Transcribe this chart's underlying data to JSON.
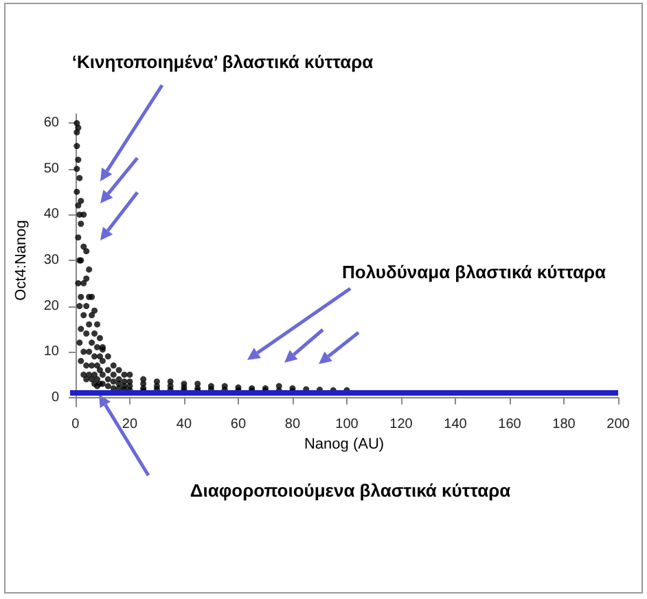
{
  "chart_data": {
    "type": "scatter",
    "xlabel": "Nanog (AU)",
    "ylabel": "Oct4:Nanog",
    "annotations": [
      "‘Κινητοποιημένα’ βλαστικά κύτταρα",
      "Πολυδύναμα βλαστικά κύτταρα",
      "Διαφοροποιούμενα βλαστικά κύτταρα"
    ],
    "xlim": [
      -2,
      200
    ],
    "xticks": [
      0,
      20,
      40,
      60,
      80,
      100,
      120,
      140,
      160,
      180,
      200
    ],
    "ylim": [
      -2,
      62
    ],
    "yticks": [
      0,
      10,
      20,
      30,
      40,
      50,
      60
    ],
    "grid": false,
    "marker": "circle",
    "ref_lines": [
      {
        "axis": "y",
        "value": 1,
        "color": "#2020c8"
      }
    ],
    "series": [
      {
        "color": "#000000",
        "x": [
          0.5,
          0.5,
          0.5,
          0.5,
          0.5,
          1,
          1,
          1,
          1,
          1,
          1.5,
          1.5,
          1.5,
          1.5,
          1.5,
          2,
          2,
          2,
          2,
          2,
          2,
          3,
          3,
          3,
          3,
          3,
          3,
          4,
          4,
          4,
          4,
          4,
          4,
          5,
          5,
          5,
          5,
          5,
          6,
          6,
          6,
          6,
          6,
          7,
          7,
          7,
          7,
          7,
          8,
          8,
          8,
          8,
          8,
          9,
          9,
          9,
          9,
          10,
          10,
          10,
          10,
          10,
          12,
          12,
          12,
          12,
          14,
          14,
          14,
          14,
          16,
          16,
          16,
          16,
          18,
          18,
          18,
          18,
          20,
          20,
          20,
          20,
          25,
          25,
          25,
          25,
          30,
          30,
          30,
          35,
          35,
          35,
          40,
          40,
          40,
          45,
          45,
          45,
          50,
          50,
          55,
          55,
          60,
          60,
          65,
          65,
          70,
          70,
          75,
          75,
          80,
          80,
          85,
          90,
          95,
          100
        ],
        "values": [
          60,
          58,
          55,
          50,
          45,
          59,
          52,
          42,
          35,
          25,
          48,
          40,
          30,
          20,
          12,
          43,
          38,
          30,
          22,
          15,
          8,
          40,
          33,
          25,
          18,
          10,
          5,
          32,
          26,
          20,
          14,
          7,
          4,
          28,
          22,
          16,
          10,
          5,
          22,
          18,
          12,
          7,
          4,
          19,
          14,
          9,
          5,
          3,
          16,
          11,
          7,
          4,
          2.5,
          13,
          9,
          6,
          3,
          11,
          8,
          5,
          3,
          10.5,
          9,
          6,
          4,
          2.5,
          7,
          5,
          3.5,
          2,
          6,
          4,
          3,
          2,
          5,
          3.5,
          2.5,
          1.8,
          5,
          3.5,
          2.5,
          1.6,
          4,
          3,
          2,
          1.5,
          3.5,
          2.5,
          1.8,
          3.5,
          2.5,
          1.7,
          3,
          2.2,
          1.6,
          3,
          2,
          1.5,
          2.5,
          1.8,
          2.5,
          1.7,
          2.2,
          1.6,
          2,
          1.5,
          2,
          1.5,
          2.5,
          1.5,
          2,
          1.4,
          1.8,
          1.7,
          1.6,
          1.6
        ]
      }
    ]
  }
}
